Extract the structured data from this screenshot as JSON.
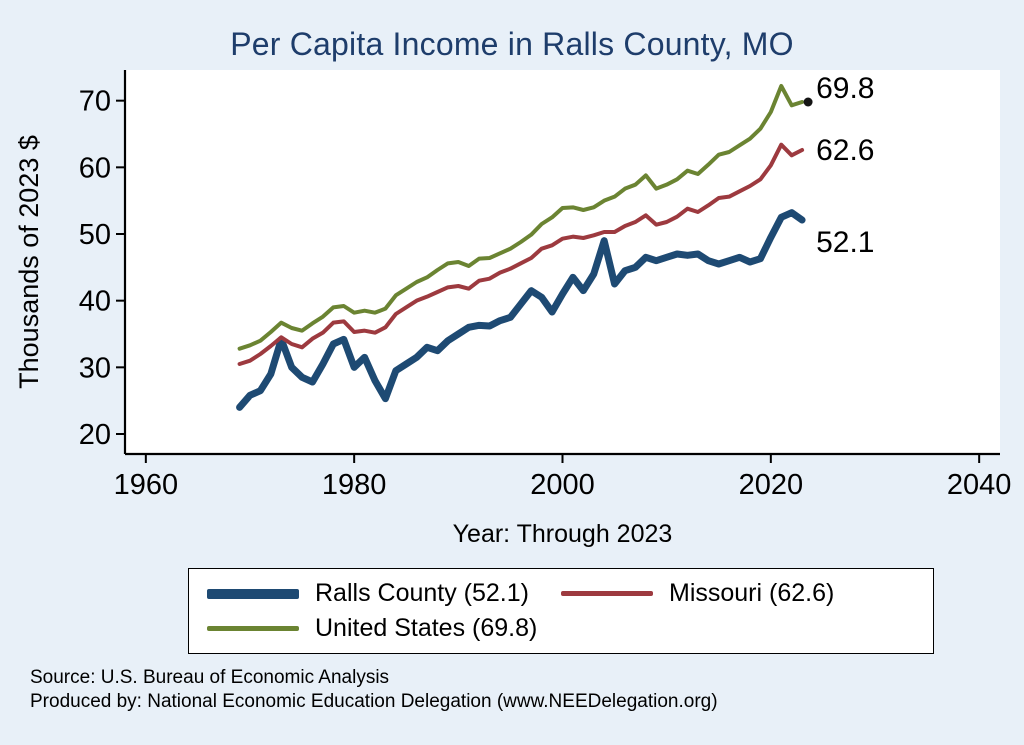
{
  "title": "Per Capita Income in Ralls County, MO",
  "chart_data": {
    "type": "line",
    "title": "Per Capita Income in Ralls County, MO",
    "xlabel": "Year: Through 2023",
    "ylabel": "Thousands of 2023 $",
    "grid": false,
    "legend_position": "bottom",
    "xlim": [
      1958,
      2042
    ],
    "ylim": [
      17,
      74.6
    ],
    "xticks": [
      1960,
      1980,
      2000,
      2020,
      2040
    ],
    "yticks": [
      20,
      30,
      40,
      50,
      60,
      70
    ],
    "x": [
      1969,
      1970,
      1971,
      1972,
      1973,
      1974,
      1975,
      1976,
      1977,
      1978,
      1979,
      1980,
      1981,
      1982,
      1983,
      1984,
      1985,
      1986,
      1987,
      1988,
      1989,
      1990,
      1991,
      1992,
      1993,
      1994,
      1995,
      1996,
      1997,
      1998,
      1999,
      2000,
      2001,
      2002,
      2003,
      2004,
      2005,
      2006,
      2007,
      2008,
      2009,
      2010,
      2011,
      2012,
      2013,
      2014,
      2015,
      2016,
      2017,
      2018,
      2019,
      2020,
      2021,
      2022,
      2023
    ],
    "series": [
      {
        "name": "Ralls County",
        "color": "#1e4a73",
        "width": 7,
        "end_label": "52.1",
        "marker_last": false,
        "values": [
          24.0,
          25.8,
          26.5,
          29.0,
          34.2,
          30.0,
          28.5,
          27.8,
          30.5,
          33.5,
          34.2,
          30.0,
          31.5,
          28.0,
          25.3,
          29.5,
          30.5,
          31.5,
          33.0,
          32.5,
          34.0,
          35.0,
          36.0,
          36.3,
          36.2,
          37.0,
          37.5,
          39.5,
          41.5,
          40.5,
          38.3,
          41.0,
          43.5,
          41.5,
          44.0,
          49.0,
          42.5,
          44.5,
          45.0,
          46.5,
          46.0,
          46.5,
          47.0,
          46.8,
          47.0,
          46.0,
          45.5,
          46.0,
          46.5,
          45.8,
          46.3,
          49.5,
          52.5,
          53.2,
          52.1
        ]
      },
      {
        "name": "Missouri",
        "color": "#9d3a3f",
        "width": 4,
        "end_label": "62.6",
        "marker_last": false,
        "values": [
          30.5,
          31.0,
          32.0,
          33.2,
          34.5,
          33.5,
          33.0,
          34.3,
          35.2,
          36.7,
          36.9,
          35.3,
          35.5,
          35.2,
          36.0,
          38.0,
          39.0,
          40.0,
          40.6,
          41.3,
          42.0,
          42.2,
          41.8,
          43.0,
          43.3,
          44.2,
          44.8,
          45.6,
          46.4,
          47.8,
          48.3,
          49.3,
          49.6,
          49.4,
          49.8,
          50.3,
          50.3,
          51.2,
          51.8,
          52.8,
          51.4,
          51.8,
          52.6,
          53.8,
          53.3,
          54.3,
          55.4,
          55.6,
          56.4,
          57.2,
          58.2,
          60.3,
          63.4,
          61.8,
          62.6
        ]
      },
      {
        "name": "United States",
        "color": "#6b8432",
        "width": 4,
        "end_label": "69.8",
        "marker_last": true,
        "values": [
          32.8,
          33.3,
          34.0,
          35.3,
          36.7,
          35.9,
          35.5,
          36.6,
          37.6,
          39.0,
          39.2,
          38.2,
          38.5,
          38.2,
          38.8,
          40.8,
          41.8,
          42.8,
          43.5,
          44.6,
          45.6,
          45.8,
          45.2,
          46.3,
          46.4,
          47.1,
          47.8,
          48.8,
          49.9,
          51.5,
          52.5,
          53.9,
          54.0,
          53.6,
          54.0,
          55.0,
          55.6,
          56.8,
          57.4,
          58.8,
          56.8,
          57.4,
          58.2,
          59.5,
          59.0,
          60.4,
          61.9,
          62.3,
          63.3,
          64.3,
          65.8,
          68.3,
          72.2,
          69.3,
          69.8
        ]
      }
    ]
  },
  "legend": {
    "items": [
      {
        "label": "Ralls County (52.1)"
      },
      {
        "label": "Missouri (62.6)"
      },
      {
        "label": "United States (69.8)"
      }
    ]
  },
  "footer": {
    "source": "Source: U.S. Bureau of Economic Analysis",
    "produced_by": "Produced by: National Economic Education Delegation (www.NEEDelegation.org)"
  }
}
